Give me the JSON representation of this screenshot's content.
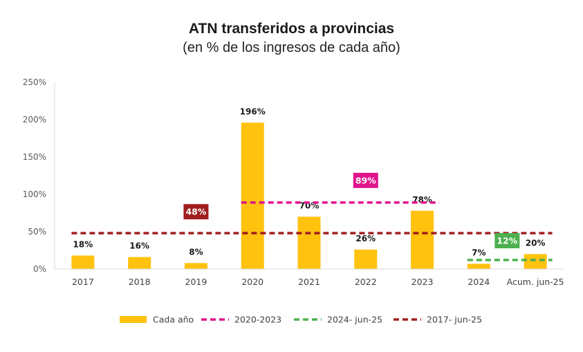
{
  "header": {
    "title": "ATN transferidos a provincias",
    "subtitle": "(en % de los ingresos de cada año)"
  },
  "colors": {
    "bar": "#FFC20E",
    "avg_2020_2023": "#E0148C",
    "avg_2024_jun25": "#4DB04D",
    "avg_2017_jun25": "#A01E1E",
    "axis": "#D9D9D9"
  },
  "chart_data": {
    "type": "bar",
    "title": "ATN transferidos a provincias",
    "subtitle": "(en % de los ingresos de cada año)",
    "categories": [
      "2017",
      "2018",
      "2019",
      "2020",
      "2021",
      "2022",
      "2023",
      "2024",
      "Acum. jun-25"
    ],
    "series": [
      {
        "name": "Cada año",
        "type": "bar",
        "values": [
          18,
          16,
          8,
          196,
          70,
          26,
          78,
          7,
          20
        ],
        "labels": [
          "18%",
          "16%",
          "8%",
          "196%",
          "70%",
          "26%",
          "78%",
          "7%",
          "20%"
        ]
      }
    ],
    "averages": [
      {
        "name": "2020-2023",
        "value": 89,
        "label": "89%",
        "from": "2020",
        "to": "2023"
      },
      {
        "name": "2024- jun-25",
        "value": 12,
        "label": "12%",
        "from": "2024",
        "to": "Acum. jun-25"
      },
      {
        "name": "2017- jun-25",
        "value": 48,
        "label": "48%",
        "from": "2017",
        "to": "Acum. jun-25"
      }
    ],
    "yticks": [
      "0%",
      "50%",
      "100%",
      "150%",
      "200%",
      "250%"
    ],
    "ylim": [
      0,
      250
    ],
    "ylabel": "",
    "xlabel": "",
    "legend_position": "bottom"
  }
}
